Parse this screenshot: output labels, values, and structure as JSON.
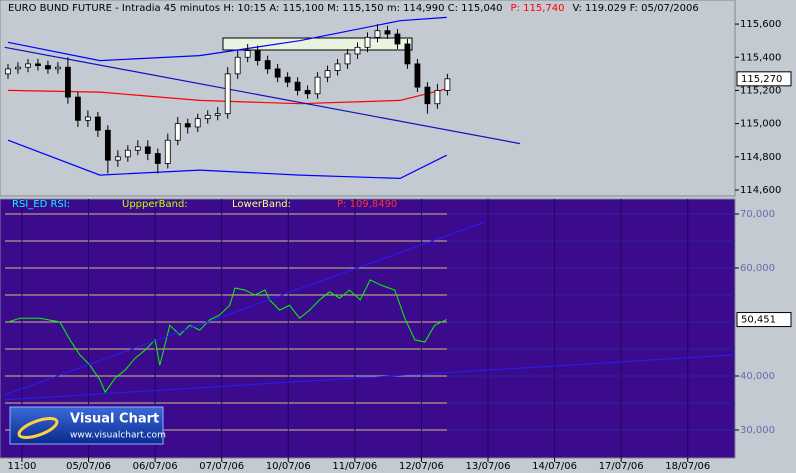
{
  "chart_data": [
    {
      "type": "candlestick",
      "title_parts": [
        {
          "text": "EURO BUND FUTURE - Intradia 45 minutos  H: 10:15  A: 115,100  M: 115,150  m: 114,990  C: 115,040",
          "color": "#000000"
        },
        {
          "text": "P: 115,740",
          "color": "#ff0000"
        },
        {
          "text": "V: 119.029  F: 05/07/2006",
          "color": "#000000"
        }
      ],
      "x": [
        -0.21,
        -0.06,
        0.09,
        0.24,
        0.39,
        0.54,
        0.69,
        0.84,
        0.99,
        1.14,
        1.29,
        1.44,
        1.59,
        1.74,
        1.89,
        2.04,
        2.19,
        2.34,
        2.49,
        2.64,
        2.79,
        2.94,
        3.09,
        3.24,
        3.39,
        3.54,
        3.69,
        3.84,
        3.99,
        4.14,
        4.29,
        4.44,
        4.59,
        4.74,
        4.89,
        5.04,
        5.19,
        5.34,
        5.49,
        5.64,
        5.79,
        5.94,
        6.09,
        6.24,
        6.39
      ],
      "open": [
        115.3,
        115.33,
        115.34,
        115.36,
        115.35,
        115.33,
        115.34,
        115.16,
        115.02,
        115.04,
        114.96,
        114.78,
        114.8,
        114.84,
        114.86,
        114.82,
        114.76,
        114.9,
        115.0,
        114.98,
        115.03,
        115.05,
        115.06,
        115.3,
        115.4,
        115.44,
        115.38,
        115.33,
        115.28,
        115.25,
        115.2,
        115.18,
        115.28,
        115.32,
        115.36,
        115.42,
        115.46,
        115.52,
        115.56,
        115.54,
        115.48,
        115.36,
        115.22,
        115.12,
        115.2
      ],
      "high": [
        115.36,
        115.37,
        115.39,
        115.39,
        115.38,
        115.37,
        115.4,
        115.19,
        115.08,
        115.07,
        114.99,
        114.84,
        114.87,
        114.9,
        114.9,
        114.85,
        114.94,
        115.04,
        115.03,
        115.06,
        115.08,
        115.1,
        115.34,
        115.44,
        115.48,
        115.47,
        115.41,
        115.36,
        115.31,
        115.28,
        115.23,
        115.31,
        115.35,
        115.39,
        115.45,
        115.49,
        115.55,
        115.6,
        115.59,
        115.57,
        115.51,
        115.39,
        115.25,
        115.24,
        115.3
      ],
      "low": [
        115.27,
        115.3,
        115.31,
        115.32,
        115.3,
        115.3,
        115.12,
        114.98,
        114.98,
        114.92,
        114.7,
        114.74,
        114.77,
        114.81,
        114.78,
        114.7,
        114.73,
        114.87,
        114.94,
        114.95,
        115.0,
        115.02,
        115.03,
        115.27,
        115.37,
        115.35,
        115.3,
        115.25,
        115.22,
        115.17,
        115.15,
        115.15,
        115.25,
        115.29,
        115.33,
        115.39,
        115.43,
        115.49,
        115.51,
        115.45,
        115.33,
        115.19,
        115.06,
        115.09,
        115.17
      ],
      "close": [
        115.33,
        115.34,
        115.36,
        115.35,
        115.33,
        115.34,
        115.16,
        115.02,
        115.04,
        114.96,
        114.78,
        114.8,
        114.84,
        114.86,
        114.82,
        114.76,
        114.9,
        115.0,
        114.98,
        115.03,
        115.05,
        115.06,
        115.3,
        115.4,
        115.44,
        115.38,
        115.33,
        115.28,
        115.25,
        115.2,
        115.18,
        115.28,
        115.32,
        115.36,
        115.42,
        115.46,
        115.52,
        115.56,
        115.54,
        115.48,
        115.36,
        115.22,
        115.12,
        115.2,
        115.27
      ],
      "up_color": "#ffffff",
      "down_color": "#000000",
      "overlays": [
        {
          "color": "#0000ff",
          "x": [
            -0.21,
            1.17,
            2.67,
            4.17,
            5.68,
            6.38
          ],
          "values": [
            115.49,
            115.38,
            115.41,
            115.5,
            115.62,
            115.64
          ]
        },
        {
          "color": "#0000ff",
          "x": [
            -0.21,
            1.17,
            2.67,
            4.17,
            5.68,
            6.38
          ],
          "values": [
            114.9,
            114.69,
            114.72,
            114.69,
            114.67,
            114.81
          ]
        },
        {
          "color": "#ff0000",
          "x": [
            -0.21,
            1.17,
            2.67,
            4.17,
            5.68,
            6.38
          ],
          "values": [
            115.2,
            115.19,
            115.14,
            115.12,
            115.14,
            115.21
          ]
        },
        {
          "color": "#1010c0",
          "x": [
            -0.26,
            7.48
          ],
          "values": [
            115.46,
            114.88
          ]
        }
      ],
      "xlim": [
        -0.33,
        10.71
      ],
      "ylim": [
        114.564,
        115.745
      ],
      "yticks": [
        {
          "value": 114.6,
          "label": "114,600"
        },
        {
          "value": 114.8,
          "label": "114,800"
        },
        {
          "value": 115.0,
          "label": "115,000"
        },
        {
          "value": 115.2,
          "label": "115,200"
        },
        {
          "value": 115.4,
          "label": "115,400"
        },
        {
          "value": 115.6,
          "label": "115,600"
        }
      ],
      "last_value": {
        "value": 115.27,
        "label": "115,270"
      }
    },
    {
      "type": "line",
      "header_parts": [
        {
          "text": "RSI_ED RSI:",
          "color": "#00ffff"
        },
        {
          "text": "UppperBand:",
          "color": "#c8ff00"
        },
        {
          "text": "LowerBand:",
          "color": "#ffff80"
        },
        {
          "text": "P: 109,8490",
          "color": "#ff3030"
        }
      ],
      "series": [
        {
          "color": "#00ff00",
          "x": [
            -0.21,
            -0.03,
            0.27,
            0.57,
            0.72,
            0.87,
            1.02,
            1.17,
            1.25,
            1.4,
            1.55,
            1.7,
            1.85,
            2.0,
            2.07,
            2.22,
            2.37,
            2.52,
            2.67,
            2.82,
            2.97,
            3.12,
            3.2,
            3.35,
            3.5,
            3.65,
            3.72,
            3.87,
            4.02,
            4.17,
            4.32,
            4.47,
            4.62,
            4.77,
            4.92,
            5.08,
            5.23,
            5.38,
            5.6,
            5.75,
            5.9,
            6.05,
            6.2,
            6.38
          ],
          "values": [
            50,
            50.7,
            50.7,
            50,
            46.7,
            43.9,
            42.0,
            39.3,
            37.0,
            39.6,
            41.1,
            43.3,
            44.8,
            46.7,
            42.0,
            49.4,
            47.6,
            49.4,
            48.5,
            50.4,
            51.3,
            53.1,
            56.3,
            55.9,
            55.0,
            55.9,
            54.1,
            52.2,
            53.1,
            50.7,
            52.2,
            54.1,
            55.6,
            54.4,
            55.9,
            54.1,
            57.8,
            56.9,
            55.9,
            50.7,
            46.7,
            46.3,
            49.4,
            50.45
          ]
        },
        {
          "color": "#2020ff",
          "x": [
            -0.26,
            6.95
          ],
          "values": [
            36.5,
            68.5
          ]
        },
        {
          "color": "#2020ff",
          "x": [
            -0.26,
            10.71
          ],
          "values": [
            35.6,
            43.9
          ]
        }
      ],
      "xlim": [
        -0.33,
        10.71
      ],
      "ylim": [
        24.81,
        72.78
      ],
      "grid": true,
      "grid_color": "#ffff80",
      "grid_levels": [
        30,
        35,
        40,
        45,
        50,
        55,
        60,
        65,
        70
      ],
      "yticks": [
        {
          "value": 30,
          "label": "30,000"
        },
        {
          "value": 40,
          "label": "40,000"
        },
        {
          "value": 60,
          "label": "60,000"
        },
        {
          "value": 70,
          "label": "70,000"
        }
      ],
      "last_value": {
        "value": 50.451,
        "label": "50,451"
      },
      "xticks": [
        {
          "value": 0,
          "label": "11:00"
        },
        {
          "value": 1,
          "label": "05/07/06"
        },
        {
          "value": 2,
          "label": "06/07/06"
        },
        {
          "value": 3,
          "label": "07/07/06"
        },
        {
          "value": 4,
          "label": "10/07/06"
        },
        {
          "value": 5,
          "label": "11/07/06"
        },
        {
          "value": 6,
          "label": "12/07/06"
        },
        {
          "value": 7,
          "label": "13/07/06"
        },
        {
          "value": 8,
          "label": "14/07/06"
        },
        {
          "value": 9,
          "label": "17/07/06"
        },
        {
          "value": 10,
          "label": "18/07/06"
        }
      ]
    }
  ],
  "logo": {
    "name": "Visual Chart",
    "url": "www.visualchart.com"
  }
}
